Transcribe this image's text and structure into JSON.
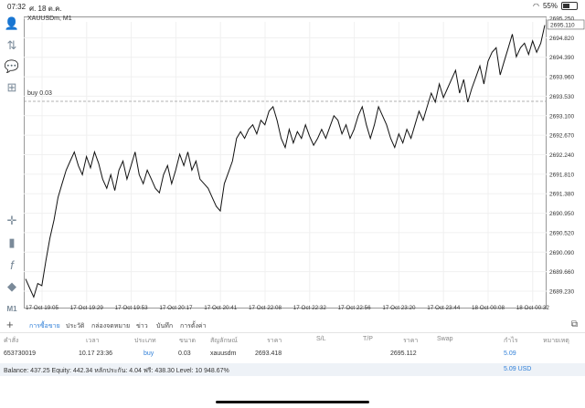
{
  "status": {
    "time": "07:32",
    "date": "ศ. 18 ต.ค.",
    "battery": "55%",
    "battery_level": 0.55
  },
  "chart": {
    "symbol": "XAUUSDm, M1",
    "buy_label": "buy 0.03",
    "current_price": "2695.110",
    "price_ticks": [
      "2695.250",
      "2694.820",
      "2694.390",
      "2693.960",
      "2693.530",
      "2693.100",
      "2692.670",
      "2692.240",
      "2691.810",
      "2691.380",
      "2690.950",
      "2690.520",
      "2690.090",
      "2689.660",
      "2689.230"
    ],
    "time_ticks": [
      "17 Oct 19:05",
      "17 Oct 19:29",
      "17 Oct 19:53",
      "17 Oct 20:17",
      "17 Oct 20:41",
      "17 Oct 22:08",
      "17 Oct 22:32",
      "17 Oct 22:56",
      "17 Oct 23:20",
      "17 Oct 23:44",
      "18 Oct 00:08",
      "18 Oct 00:32"
    ]
  },
  "tools": [
    "user-icon",
    "trade-icon",
    "chat-icon",
    "add-document-icon",
    "crosshair-icon",
    "candles-icon",
    "function-icon",
    "objects-icon"
  ],
  "timeframe": "M1",
  "tabs": [
    "การซื้อขาย",
    "ประวัติ",
    "กล่องจดหมาย",
    "ข่าว",
    "บันทึก",
    "การตั้งค่า"
  ],
  "table": {
    "headers": [
      "คำสั่ง",
      "เวลา",
      "ประเภท",
      "ขนาด",
      "สัญลักษณ์",
      "ราคา",
      "S/L",
      "T/P",
      "ราคา",
      "Swap",
      "กำไร",
      "หมายเหตุ"
    ],
    "row": {
      "order": "653730019",
      "time": "10.17 23:36",
      "type": "buy",
      "size": "0.03",
      "symbol": "xauusdm",
      "open_price": "2693.418",
      "price": "2695.112",
      "profit": "5.09"
    }
  },
  "balance": {
    "text": "Balance: 437.25 Equity: 442.34 หลักประกัน: 4.04 ฟรี: 438.30 Level: 10 948.67%",
    "profit": "5.09 USD"
  }
}
